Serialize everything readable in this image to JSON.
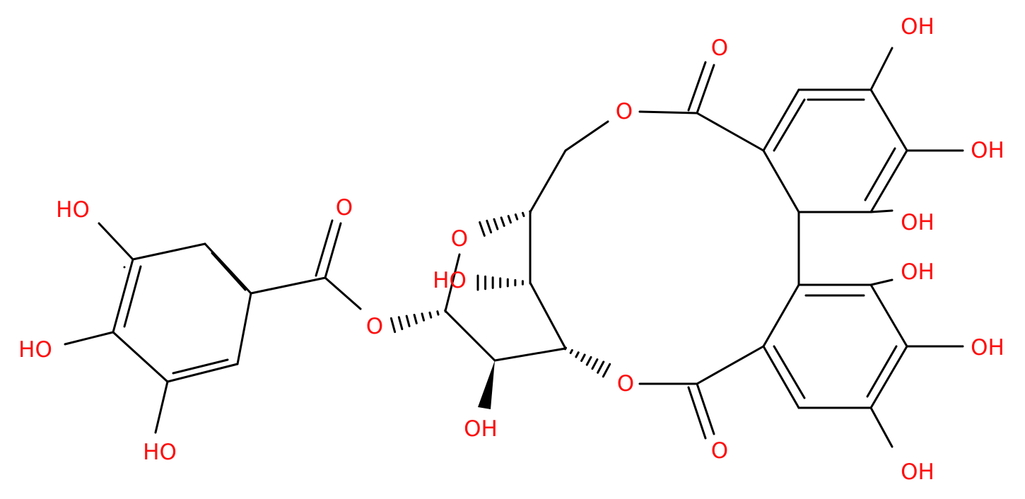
{
  "atoms": [
    "OH",
    "O",
    "O",
    "OH",
    "OH",
    "HO",
    "O",
    "O",
    "HO",
    "OH",
    "O",
    "HO",
    "OH",
    "O",
    "OH",
    "O",
    "HO",
    "OH"
  ]
}
